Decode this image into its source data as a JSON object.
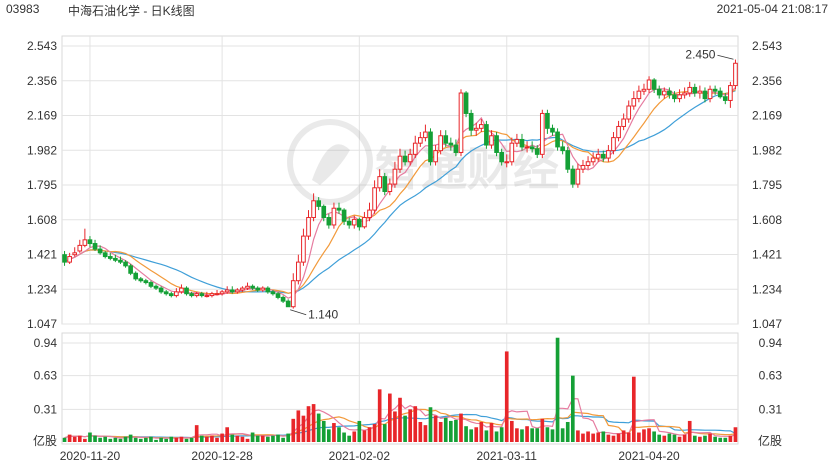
{
  "header": {
    "code": "03983",
    "title": "中海石油化学 - 日K线图",
    "timestamp": "2021-05-04 21:08:17"
  },
  "watermark": "智通财经",
  "colors": {
    "up": "#e8262a",
    "down": "#15a036",
    "ma5": "#e67ca0",
    "ma10": "#f29a3b",
    "ma20": "#3f9fd8",
    "grid": "#e3e3e3",
    "axis": "#999999"
  },
  "chart_data": [
    {
      "type": "candlestick",
      "title": "中海石油化学 - 日K线图",
      "y_ticks": [
        "2.543",
        "2.356",
        "2.169",
        "1.982",
        "1.795",
        "1.608",
        "1.421",
        "1.234",
        "1.047"
      ],
      "ylim": [
        1.047,
        2.543
      ],
      "x_tick_labels": [
        "2020-11-20",
        "2020-12-28",
        "2021-02-02",
        "2021-03-11",
        "2021-04-20"
      ],
      "x_tick_index": [
        5,
        31,
        58,
        87,
        115
      ],
      "annotations": [
        {
          "text": "2.450",
          "value": 2.45,
          "index": 132
        },
        {
          "text": "1.140",
          "value": 1.14,
          "index": 44
        }
      ],
      "close": [
        1.38,
        1.41,
        1.43,
        1.47,
        1.5,
        1.48,
        1.45,
        1.43,
        1.41,
        1.4,
        1.39,
        1.38,
        1.36,
        1.32,
        1.29,
        1.28,
        1.27,
        1.25,
        1.24,
        1.22,
        1.21,
        1.2,
        1.22,
        1.24,
        1.21,
        1.2,
        1.21,
        1.2,
        1.2,
        1.21,
        1.21,
        1.22,
        1.23,
        1.22,
        1.23,
        1.24,
        1.25,
        1.24,
        1.23,
        1.24,
        1.22,
        1.21,
        1.19,
        1.17,
        1.14,
        1.28,
        1.38,
        1.52,
        1.62,
        1.71,
        1.68,
        1.62,
        1.58,
        1.67,
        1.66,
        1.6,
        1.58,
        1.61,
        1.57,
        1.62,
        1.66,
        1.78,
        1.84,
        1.76,
        1.8,
        1.88,
        1.95,
        1.92,
        1.96,
        2.02,
        2.05,
        2.08,
        1.92,
        1.98,
        2.06,
        2.02,
        2.01,
        1.97,
        2.29,
        2.18,
        2.09,
        2.1,
        2.12,
        2.01,
        2.06,
        1.97,
        1.92,
        1.92,
        2.02,
        2.04,
        2.0,
        2.0,
        1.99,
        1.96,
        2.18,
        2.1,
        2.08,
        2.0,
        1.98,
        1.88,
        1.8,
        1.88,
        1.9,
        1.92,
        1.94,
        1.96,
        1.94,
        1.98,
        2.05,
        2.11,
        2.15,
        2.22,
        2.26,
        2.3,
        2.31,
        2.36,
        2.31,
        2.28,
        2.3,
        2.28,
        2.26,
        2.28,
        2.29,
        2.32,
        2.29,
        2.3,
        2.26,
        2.31,
        2.3,
        2.27,
        2.25,
        2.33,
        2.45
      ],
      "open": [
        1.42,
        1.38,
        1.42,
        1.44,
        1.47,
        1.5,
        1.48,
        1.45,
        1.43,
        1.41,
        1.4,
        1.39,
        1.38,
        1.36,
        1.32,
        1.29,
        1.28,
        1.27,
        1.25,
        1.24,
        1.22,
        1.21,
        1.2,
        1.22,
        1.24,
        1.21,
        1.2,
        1.21,
        1.2,
        1.2,
        1.21,
        1.21,
        1.22,
        1.23,
        1.22,
        1.23,
        1.24,
        1.25,
        1.24,
        1.23,
        1.24,
        1.22,
        1.21,
        1.19,
        1.17,
        1.14,
        1.28,
        1.38,
        1.52,
        1.62,
        1.71,
        1.68,
        1.62,
        1.58,
        1.67,
        1.66,
        1.6,
        1.58,
        1.61,
        1.57,
        1.62,
        1.66,
        1.78,
        1.84,
        1.76,
        1.8,
        1.88,
        1.95,
        1.92,
        1.96,
        2.02,
        2.05,
        2.08,
        1.92,
        1.98,
        2.06,
        2.02,
        2.01,
        1.97,
        2.29,
        2.18,
        2.09,
        2.1,
        2.12,
        2.01,
        2.06,
        1.97,
        1.92,
        1.92,
        2.02,
        2.04,
        2.0,
        2.0,
        1.99,
        1.96,
        2.18,
        2.1,
        2.08,
        2.0,
        1.98,
        1.88,
        1.8,
        1.88,
        1.9,
        1.92,
        1.94,
        1.96,
        1.94,
        1.98,
        2.05,
        2.11,
        2.15,
        2.22,
        2.26,
        2.3,
        2.31,
        2.36,
        2.31,
        2.28,
        2.3,
        2.28,
        2.26,
        2.28,
        2.29,
        2.32,
        2.29,
        2.3,
        2.26,
        2.31,
        2.3,
        2.27,
        2.25,
        2.33
      ],
      "high": [
        1.44,
        1.43,
        1.46,
        1.5,
        1.56,
        1.52,
        1.5,
        1.47,
        1.44,
        1.43,
        1.42,
        1.41,
        1.39,
        1.37,
        1.33,
        1.3,
        1.29,
        1.28,
        1.26,
        1.25,
        1.23,
        1.22,
        1.24,
        1.26,
        1.25,
        1.22,
        1.22,
        1.22,
        1.22,
        1.22,
        1.23,
        1.23,
        1.25,
        1.25,
        1.24,
        1.25,
        1.27,
        1.26,
        1.25,
        1.25,
        1.25,
        1.23,
        1.22,
        1.2,
        1.18,
        1.32,
        1.42,
        1.56,
        1.66,
        1.75,
        1.73,
        1.69,
        1.64,
        1.7,
        1.7,
        1.67,
        1.62,
        1.63,
        1.62,
        1.65,
        1.7,
        1.82,
        1.88,
        1.86,
        1.83,
        1.92,
        1.99,
        1.98,
        1.99,
        2.06,
        2.08,
        2.12,
        2.1,
        2.01,
        2.09,
        2.09,
        2.05,
        2.04,
        2.31,
        2.3,
        2.2,
        2.13,
        2.15,
        2.14,
        2.09,
        2.08,
        1.99,
        1.96,
        2.05,
        2.07,
        2.07,
        2.03,
        2.03,
        2.01,
        2.2,
        2.2,
        2.12,
        2.1,
        2.03,
        2.0,
        1.9,
        1.91,
        1.93,
        1.95,
        1.97,
        1.99,
        1.98,
        2.01,
        2.08,
        2.14,
        2.18,
        2.25,
        2.3,
        2.33,
        2.34,
        2.38,
        2.37,
        2.33,
        2.32,
        2.32,
        2.3,
        2.31,
        2.32,
        2.35,
        2.34,
        2.33,
        2.32,
        2.33,
        2.33,
        2.32,
        2.29,
        2.35,
        2.47
      ],
      "low": [
        1.36,
        1.37,
        1.41,
        1.43,
        1.46,
        1.46,
        1.44,
        1.42,
        1.4,
        1.39,
        1.38,
        1.37,
        1.35,
        1.31,
        1.28,
        1.27,
        1.26,
        1.24,
        1.23,
        1.21,
        1.2,
        1.19,
        1.19,
        1.21,
        1.2,
        1.19,
        1.19,
        1.19,
        1.19,
        1.19,
        1.2,
        1.2,
        1.21,
        1.21,
        1.21,
        1.22,
        1.23,
        1.23,
        1.22,
        1.22,
        1.21,
        1.2,
        1.18,
        1.16,
        1.14,
        1.13,
        1.26,
        1.36,
        1.5,
        1.6,
        1.66,
        1.6,
        1.56,
        1.56,
        1.64,
        1.58,
        1.56,
        1.56,
        1.55,
        1.56,
        1.6,
        1.64,
        1.76,
        1.74,
        1.74,
        1.78,
        1.86,
        1.9,
        1.9,
        1.94,
        2.0,
        2.03,
        1.9,
        1.9,
        1.96,
        2.0,
        1.98,
        1.95,
        1.95,
        2.16,
        2.06,
        2.06,
        2.08,
        1.99,
        1.99,
        1.95,
        1.9,
        1.89,
        1.9,
        2.0,
        1.98,
        1.97,
        1.97,
        1.94,
        1.94,
        2.07,
        2.06,
        1.98,
        1.96,
        1.86,
        1.78,
        1.78,
        1.86,
        1.88,
        1.9,
        1.92,
        1.92,
        1.92,
        1.96,
        2.03,
        2.09,
        2.13,
        2.2,
        2.24,
        2.28,
        2.29,
        2.29,
        2.26,
        2.26,
        2.26,
        2.24,
        2.24,
        2.26,
        2.27,
        2.27,
        2.26,
        2.24,
        2.24,
        2.28,
        2.26,
        2.23,
        2.21,
        2.31
      ],
      "volume_panel": {
        "y_ticks": [
          "0.94",
          "0.63",
          "0.31"
        ],
        "unit": "亿股",
        "ylim": [
          0,
          0.94
        ],
        "values": [
          0.04,
          0.07,
          0.05,
          0.06,
          0.03,
          0.09,
          0.06,
          0.04,
          0.05,
          0.03,
          0.04,
          0.03,
          0.05,
          0.07,
          0.04,
          0.03,
          0.04,
          0.05,
          0.02,
          0.04,
          0.03,
          0.05,
          0.04,
          0.05,
          0.03,
          0.04,
          0.16,
          0.06,
          0.05,
          0.06,
          0.04,
          0.08,
          0.14,
          0.07,
          0.06,
          0.05,
          0.03,
          0.09,
          0.06,
          0.06,
          0.05,
          0.06,
          0.07,
          0.04,
          0.08,
          0.22,
          0.3,
          0.25,
          0.34,
          0.36,
          0.27,
          0.2,
          0.12,
          0.18,
          0.14,
          0.09,
          0.06,
          0.1,
          0.2,
          0.11,
          0.14,
          0.17,
          0.5,
          0.17,
          0.46,
          0.29,
          0.42,
          0.25,
          0.31,
          0.34,
          0.19,
          0.16,
          0.33,
          0.25,
          0.19,
          0.23,
          0.2,
          0.21,
          0.27,
          0.15,
          0.12,
          0.14,
          0.19,
          0.11,
          0.18,
          0.1,
          0.14,
          0.23,
          0.2,
          0.13,
          0.12,
          0.15,
          0.13,
          0.13,
          0.22,
          0.14,
          0.12,
          0.1,
          0.13,
          0.19,
          0.12,
          0.11,
          0.08,
          0.1,
          0.08,
          0.09,
          0.1,
          0.07,
          0.06,
          0.08,
          0.11,
          0.09,
          0.08,
          0.09,
          0.12,
          0.13,
          0.1,
          0.07,
          0.06,
          0.08,
          0.07,
          0.05,
          0.07,
          0.09,
          0.06,
          0.05,
          0.06,
          0.08,
          0.05,
          0.04,
          0.04,
          0.06,
          0.14
        ],
        "overrides": {
          "87": 0.86,
          "97": 0.99,
          "100": 0.63,
          "112": 0.62,
          "123": 0.2
        }
      },
      "moving_averages": [
        "MA5",
        "MA10",
        "MA20"
      ]
    }
  ]
}
